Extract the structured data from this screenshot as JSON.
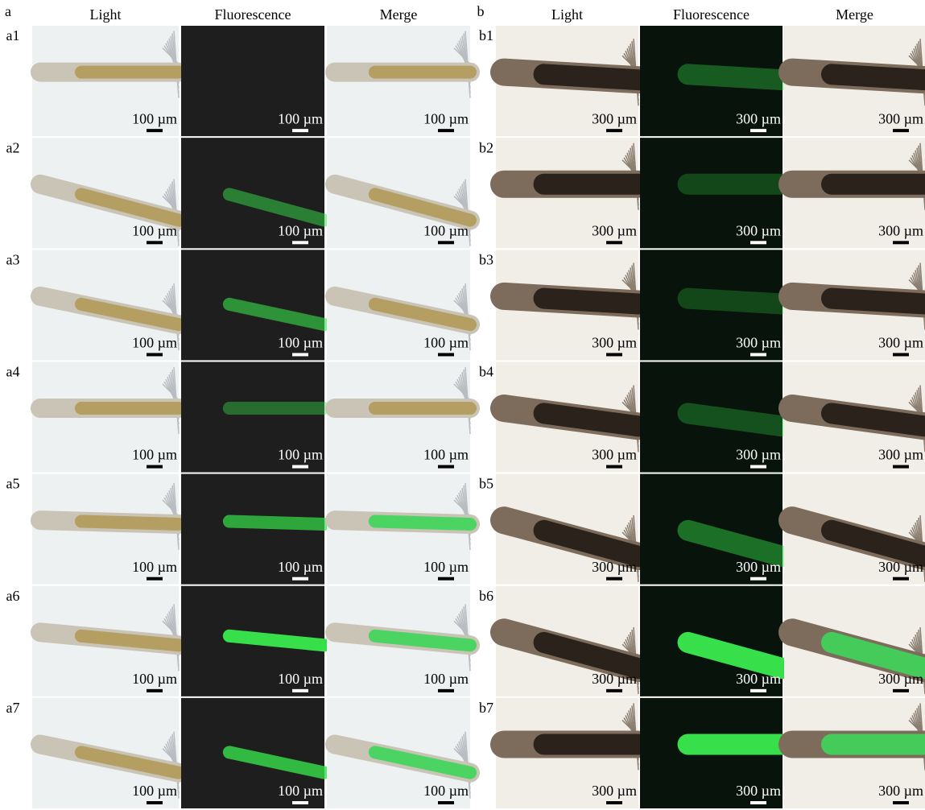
{
  "panels": [
    {
      "label": "a",
      "columns": [
        "Light",
        "Fluorescence",
        "Merge"
      ],
      "rows": [
        {
          "label": "a1",
          "scale_bars": [
            "100 µm",
            "100 µm",
            "100 µm"
          ]
        },
        {
          "label": "a2",
          "scale_bars": [
            "100 µm",
            "100 µm",
            "100 µm"
          ]
        },
        {
          "label": "a3",
          "scale_bars": [
            "100 µm",
            "100 µm",
            "100 µm"
          ]
        },
        {
          "label": "a4",
          "scale_bars": [
            "100 µm",
            "100 µm",
            "100 µm"
          ]
        },
        {
          "label": "a5",
          "scale_bars": [
            "100 µm",
            "100 µm",
            "100 µm"
          ]
        },
        {
          "label": "a6",
          "scale_bars": [
            "100 µm",
            "100 µm",
            "100 µm"
          ]
        },
        {
          "label": "a7",
          "scale_bars": [
            "100 µm",
            "100 µm",
            "100 µm"
          ]
        }
      ]
    },
    {
      "label": "b",
      "columns": [
        "Light",
        "Fluorescence",
        "Merge"
      ],
      "rows": [
        {
          "label": "b1",
          "scale_bars": [
            "300 µm",
            "300 µm",
            "300 µm"
          ]
        },
        {
          "label": "b2",
          "scale_bars": [
            "300 µm",
            "300 µm",
            "300 µm"
          ]
        },
        {
          "label": "b3",
          "scale_bars": [
            "300 µm",
            "300 µm",
            "300 µm"
          ]
        },
        {
          "label": "b4",
          "scale_bars": [
            "300 µm",
            "300 µm",
            "300 µm"
          ]
        },
        {
          "label": "b5",
          "scale_bars": [
            "300 µm",
            "300 µm",
            "300 µm"
          ]
        },
        {
          "label": "b6",
          "scale_bars": [
            "300 µm",
            "300 µm",
            "300 µm"
          ]
        },
        {
          "label": "b7",
          "scale_bars": [
            "300 µm",
            "300 µm",
            "300 µm"
          ]
        }
      ]
    }
  ]
}
